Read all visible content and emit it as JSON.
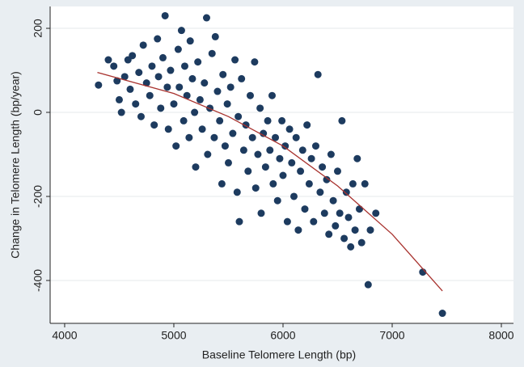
{
  "chart_data": {
    "type": "scatter",
    "x_label": "Baseline Telomere Length (bp)",
    "y_label": "Change in Telomere Length (bp/year)",
    "xlim": [
      3867,
      8111
    ],
    "ylim": [
      -502,
      252
    ],
    "xticks": [
      4000,
      5000,
      6000,
      7000,
      8000
    ],
    "yticks": [
      -400,
      -200,
      0,
      200
    ],
    "grid": true,
    "points": {
      "color": "#1d3b5f",
      "x": [
        4310,
        4400,
        4450,
        4480,
        4500,
        4520,
        4550,
        4580,
        4600,
        4620,
        4650,
        4680,
        4700,
        4720,
        4750,
        4780,
        4800,
        4820,
        4850,
        4860,
        4880,
        4900,
        4920,
        4940,
        4950,
        4970,
        5000,
        5020,
        5040,
        5050,
        5070,
        5090,
        5100,
        5120,
        5140,
        5150,
        5170,
        5190,
        5200,
        5220,
        5240,
        5260,
        5280,
        5300,
        5310,
        5330,
        5350,
        5370,
        5380,
        5400,
        5420,
        5440,
        5450,
        5470,
        5490,
        5500,
        5520,
        5540,
        5560,
        5580,
        5590,
        5600,
        5620,
        5640,
        5660,
        5680,
        5700,
        5720,
        5740,
        5750,
        5770,
        5790,
        5800,
        5820,
        5840,
        5860,
        5880,
        5900,
        5910,
        5930,
        5950,
        5970,
        5990,
        6000,
        6020,
        6040,
        6060,
        6080,
        6100,
        6120,
        6140,
        6160,
        6180,
        6200,
        6220,
        6240,
        6260,
        6280,
        6300,
        6320,
        6340,
        6360,
        6380,
        6400,
        6420,
        6440,
        6460,
        6480,
        6500,
        6520,
        6540,
        6560,
        6580,
        6600,
        6620,
        6640,
        6660,
        6680,
        6700,
        6720,
        6750,
        6780,
        6800,
        6850,
        7280,
        7460
      ],
      "y": [
        65,
        125,
        110,
        75,
        30,
        0,
        85,
        125,
        55,
        135,
        20,
        95,
        -10,
        160,
        70,
        40,
        110,
        -30,
        175,
        85,
        10,
        130,
        230,
        60,
        -40,
        100,
        20,
        -80,
        150,
        60,
        195,
        -20,
        110,
        40,
        -60,
        170,
        80,
        0,
        -130,
        120,
        30,
        -40,
        70,
        225,
        -100,
        10,
        140,
        -60,
        180,
        50,
        -20,
        -170,
        90,
        -80,
        20,
        -120,
        60,
        -50,
        125,
        -190,
        -10,
        -260,
        80,
        -90,
        -30,
        -140,
        40,
        -60,
        120,
        -180,
        -100,
        10,
        -240,
        -50,
        -130,
        -20,
        -90,
        40,
        -170,
        -60,
        -210,
        -110,
        -20,
        -150,
        -80,
        -260,
        -40,
        -120,
        -200,
        -60,
        -280,
        -140,
        -90,
        -230,
        -30,
        -170,
        -110,
        -260,
        -80,
        90,
        -190,
        -130,
        -240,
        -160,
        -290,
        -100,
        -210,
        -270,
        -140,
        -240,
        -20,
        -300,
        -190,
        -250,
        -320,
        -170,
        -280,
        -110,
        -230,
        -310,
        -170,
        -410,
        -280,
        -240,
        -380,
        -478
      ]
    },
    "fit_line": {
      "color": "#a8322e",
      "x": [
        4300,
        5000,
        5500,
        6000,
        6500,
        7000,
        7460
      ],
      "y": [
        95,
        45,
        -10,
        -80,
        -175,
        -290,
        -425
      ]
    }
  }
}
